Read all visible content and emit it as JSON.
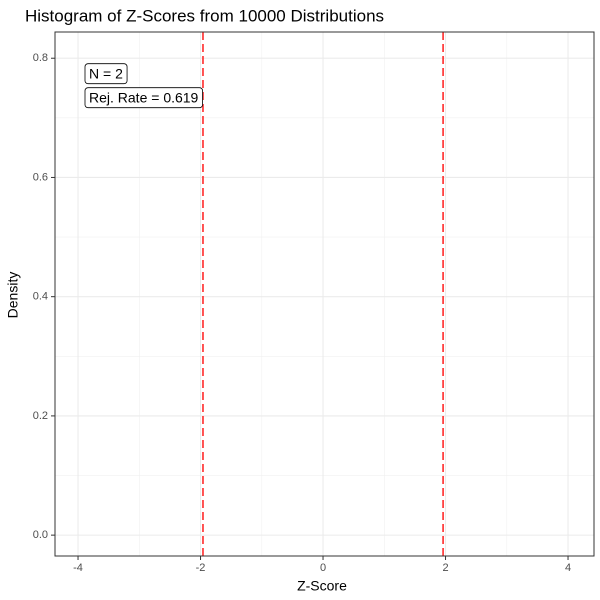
{
  "chart_data": {
    "type": "histogram",
    "title": "Histogram of Z-Scores from 10000 Distributions",
    "x_label": "Z-Score",
    "y_label": "Density",
    "xlim": [
      -4.376,
      4.424
    ],
    "ylim": [
      -0.035,
      0.844
    ],
    "xticks": [
      -4,
      -2,
      0,
      2,
      4
    ],
    "yticks": [
      {
        "value": 0,
        "label": "0.0"
      },
      {
        "value": 0.2,
        "label": "0.2"
      },
      {
        "value": 0.4,
        "label": "0.4"
      },
      {
        "value": 0.6,
        "label": "0.6"
      },
      {
        "value": 0.8,
        "label": "0.8"
      }
    ],
    "grid": true,
    "minor_grid": true,
    "vlines": [
      -1.96,
      1.96
    ],
    "vline_color": "#ff2a2a",
    "annotations": [
      "N = 2",
      "Rej. Rate = 0.619"
    ]
  }
}
